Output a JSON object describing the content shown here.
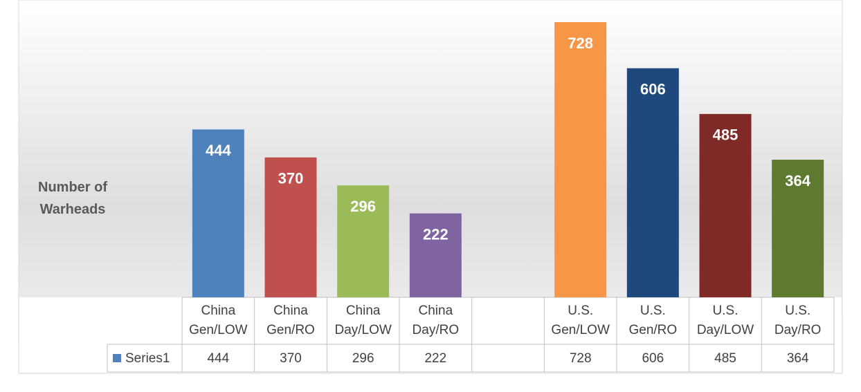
{
  "chart_data": {
    "type": "bar",
    "y_label": "Number of Warheads",
    "categories": [
      "China Gen/LOW",
      "China Gen/RO",
      "China Day/LOW",
      "China Day/RO",
      null,
      "U.S. Gen/LOW",
      "U.S. Gen/RO",
      "U.S. Day/LOW",
      "U.S. Day/RO"
    ],
    "series": [
      {
        "name": "Series1",
        "color": "#4f81bd",
        "values": [
          444,
          370,
          296,
          222,
          null,
          728,
          606,
          485,
          364
        ],
        "bar_colors": [
          "#4f81bd",
          "#c0504d",
          "#9bbb59",
          "#8064a2",
          null,
          "#f79646",
          "#1f497d",
          "#7f2a26",
          "#5e7a2f"
        ]
      }
    ],
    "data_labels": true,
    "data_table": true,
    "legend": "table"
  }
}
